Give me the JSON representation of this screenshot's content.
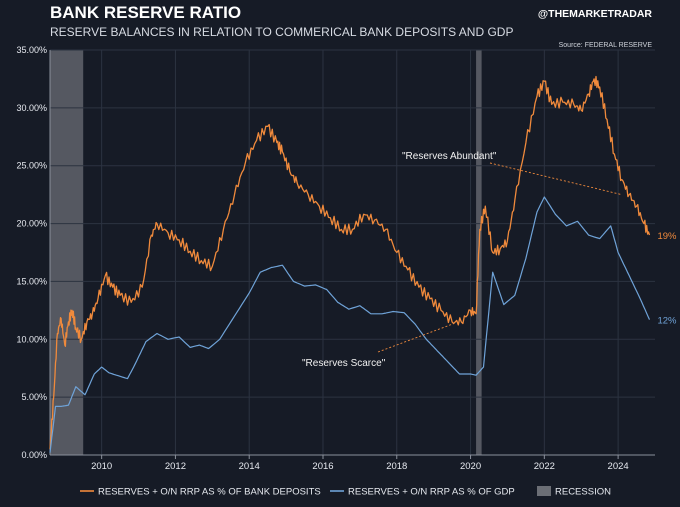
{
  "header": {
    "title": "BANK RESERVE RATIO",
    "subtitle": "RESERVE BALANCES IN RELATION TO COMMERICAL BANK DEPOSITS AND GDP",
    "handle": "@THEMARKETRADAR",
    "source": "Source: FEDERAL RESERVE"
  },
  "colors": {
    "deposits": "#f08a3c",
    "gdp": "#6fa3d8",
    "recession": "#6b6e75",
    "background": "#161b26"
  },
  "chart_data": {
    "type": "line",
    "title": "BANK RESERVE RATIO",
    "xlim": [
      2008.6,
      2025.0
    ],
    "ylim": [
      0,
      35
    ],
    "y_ticks": [
      0,
      5,
      10,
      15,
      20,
      25,
      30,
      35
    ],
    "y_tick_labels": [
      "0.00%",
      "5.00%",
      "10.00%",
      "15.00%",
      "20.00%",
      "25.00%",
      "30.00%",
      "35.00%"
    ],
    "x_ticks": [
      2010,
      2012,
      2014,
      2016,
      2018,
      2020,
      2022,
      2024
    ],
    "x_tick_labels": [
      "2010",
      "2012",
      "2014",
      "2016",
      "2018",
      "2020",
      "2022",
      "2024"
    ],
    "grid": true,
    "legend_position": "bottom",
    "recessions": [
      [
        2008.6,
        2009.5
      ],
      [
        2020.15,
        2020.3
      ]
    ],
    "series": [
      {
        "name": "RESERVES + O/N RRP AS % OF BANK DEPOSITS",
        "color": "#f08a3c",
        "end_label": "19%",
        "x": [
          2008.6,
          2008.7,
          2008.8,
          2008.9,
          2009.0,
          2009.1,
          2009.2,
          2009.3,
          2009.45,
          2009.6,
          2009.75,
          2009.9,
          2010.1,
          2010.3,
          2010.5,
          2010.8,
          2011.1,
          2011.35,
          2011.5,
          2011.8,
          2012.1,
          2012.4,
          2012.7,
          2013.0,
          2013.3,
          2013.6,
          2013.9,
          2014.2,
          2014.5,
          2014.75,
          2014.9,
          2015.1,
          2015.3,
          2015.6,
          2015.9,
          2016.2,
          2016.5,
          2016.8,
          2017.1,
          2017.4,
          2017.7,
          2018.0,
          2018.3,
          2018.6,
          2018.9,
          2019.2,
          2019.5,
          2019.75,
          2020.0,
          2020.15,
          2020.25,
          2020.4,
          2020.6,
          2020.8,
          2021.0,
          2021.2,
          2021.5,
          2021.8,
          2022.0,
          2022.2,
          2022.5,
          2022.8,
          2023.0,
          2023.2,
          2023.35,
          2023.5,
          2023.7,
          2023.9,
          2024.1,
          2024.3,
          2024.5,
          2024.7,
          2024.85
        ],
        "values": [
          0.5,
          5.0,
          10.5,
          11.8,
          9.5,
          11.5,
          12.5,
          11.0,
          10.0,
          11.5,
          12.2,
          13.5,
          15.5,
          14.5,
          13.8,
          13.2,
          14.5,
          19.0,
          20.0,
          19.2,
          18.6,
          17.6,
          16.8,
          16.3,
          19.5,
          22.5,
          25.3,
          27.2,
          28.4,
          27.0,
          26.2,
          24.5,
          23.5,
          22.5,
          21.5,
          20.5,
          19.5,
          19.5,
          20.8,
          20.3,
          19.5,
          17.5,
          16.0,
          14.5,
          13.5,
          12.5,
          11.5,
          11.5,
          12.5,
          12.2,
          19.5,
          21.5,
          17.5,
          17.8,
          18.5,
          22.0,
          27.0,
          31.0,
          32.3,
          30.3,
          30.5,
          30.3,
          29.8,
          31.2,
          32.5,
          31.8,
          29.0,
          26.0,
          23.8,
          22.5,
          21.5,
          20.0,
          19.0
        ]
      },
      {
        "name": "RESERVES + O/N RRP AS % OF GDP",
        "color": "#6fa3d8",
        "end_label": "12%",
        "x": [
          2008.6,
          2008.75,
          2008.9,
          2009.1,
          2009.3,
          2009.55,
          2009.8,
          2010.0,
          2010.2,
          2010.4,
          2010.7,
          2010.9,
          2011.2,
          2011.5,
          2011.8,
          2012.1,
          2012.4,
          2012.65,
          2012.9,
          2013.2,
          2013.6,
          2014.0,
          2014.3,
          2014.6,
          2014.9,
          2015.2,
          2015.5,
          2015.8,
          2016.1,
          2016.4,
          2016.7,
          2017.0,
          2017.3,
          2017.6,
          2017.9,
          2018.2,
          2018.5,
          2018.8,
          2019.1,
          2019.4,
          2019.7,
          2020.0,
          2020.15,
          2020.35,
          2020.6,
          2020.9,
          2021.2,
          2021.5,
          2021.8,
          2022.0,
          2022.3,
          2022.6,
          2022.9,
          2023.2,
          2023.5,
          2023.8,
          2024.0,
          2024.3,
          2024.6,
          2024.85
        ],
        "values": [
          0.2,
          4.2,
          4.2,
          4.3,
          5.9,
          5.2,
          7.0,
          7.6,
          7.1,
          6.9,
          6.6,
          7.8,
          9.8,
          10.5,
          10.0,
          10.2,
          9.3,
          9.5,
          9.2,
          10.0,
          12.0,
          14.0,
          15.8,
          16.2,
          16.4,
          15.0,
          14.6,
          14.7,
          14.3,
          13.2,
          12.6,
          12.9,
          12.2,
          12.2,
          12.4,
          12.3,
          11.3,
          10.0,
          9.0,
          8.0,
          7.0,
          7.0,
          6.9,
          7.6,
          15.8,
          13.0,
          13.8,
          17.0,
          21.0,
          22.3,
          20.8,
          19.8,
          20.2,
          19.0,
          18.7,
          19.8,
          17.5,
          15.5,
          13.5,
          11.7
        ]
      }
    ],
    "annotations": [
      {
        "text": "\"Reserves Abundant\"",
        "x": 2021.0,
        "y": 25.0
      },
      {
        "text": "\"Reserves Scarce\"",
        "x": 2018.2,
        "y": 8.0
      }
    ]
  },
  "legend": {
    "items": [
      {
        "label": "RESERVES + O/N RRP AS % OF BANK DEPOSITS",
        "color": "#f08a3c"
      },
      {
        "label": "RESERVES + O/N RRP AS % OF GDP",
        "color": "#6fa3d8"
      },
      {
        "label": "RECESSION",
        "color": "#6b6e75"
      }
    ]
  }
}
